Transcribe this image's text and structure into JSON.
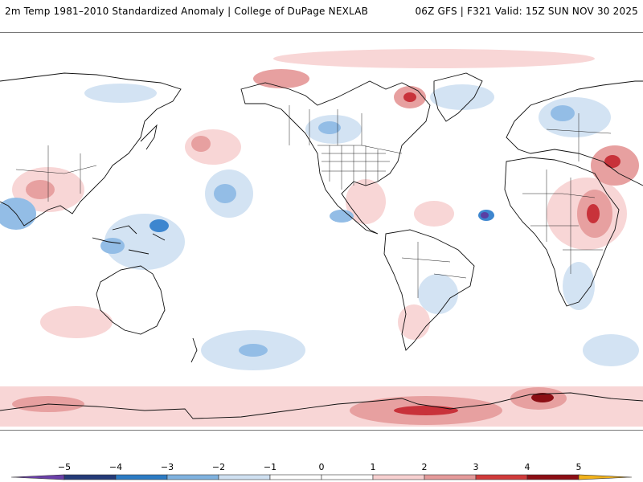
{
  "header": {
    "title_left": "2m Temp 1981–2010 Standardized Anomaly | College of DuPage NEXLAB",
    "title_right": "06Z GFS | F321 Valid: 15Z SUN NOV 30 2025"
  },
  "colorbar": {
    "ticks": [
      "−5",
      "−4",
      "−3",
      "−2",
      "−1",
      "0",
      "1",
      "2",
      "3",
      "4",
      "5"
    ],
    "tick_values": [
      -5,
      -4,
      -3,
      -2,
      -1,
      0,
      1,
      2,
      3,
      4,
      5
    ],
    "bins": [
      {
        "from": -5,
        "to": -4,
        "color": "#243a78"
      },
      {
        "from": -4,
        "to": -3,
        "color": "#2b7bc4"
      },
      {
        "from": -3,
        "to": -2,
        "color": "#7fb2df"
      },
      {
        "from": -2,
        "to": -1,
        "color": "#cfe0f1"
      },
      {
        "from": -1,
        "to": 0,
        "color": "#ffffff"
      },
      {
        "from": 0,
        "to": 1,
        "color": "#ffffff"
      },
      {
        "from": 1,
        "to": 2,
        "color": "#f7d0d0"
      },
      {
        "from": 2,
        "to": 3,
        "color": "#e49a9a"
      },
      {
        "from": 3,
        "to": 4,
        "color": "#d03a3a"
      },
      {
        "from": 4,
        "to": 5,
        "color": "#8c0e14"
      }
    ],
    "low_end_color": "#6a3fa8",
    "high_end_color": "#f2b21a"
  },
  "map_colors": {
    "land_outline": "#111111",
    "ocean": "#ffffff",
    "light_warm": "#f8d6d6",
    "warm": "#e7a0a0",
    "hot": "#c8323a",
    "very_hot": "#8c0e14",
    "light_cold": "#d3e3f3",
    "cold": "#93bde6",
    "very_cold": "#3d86cf",
    "extreme_cold": "#5a3ea3"
  }
}
